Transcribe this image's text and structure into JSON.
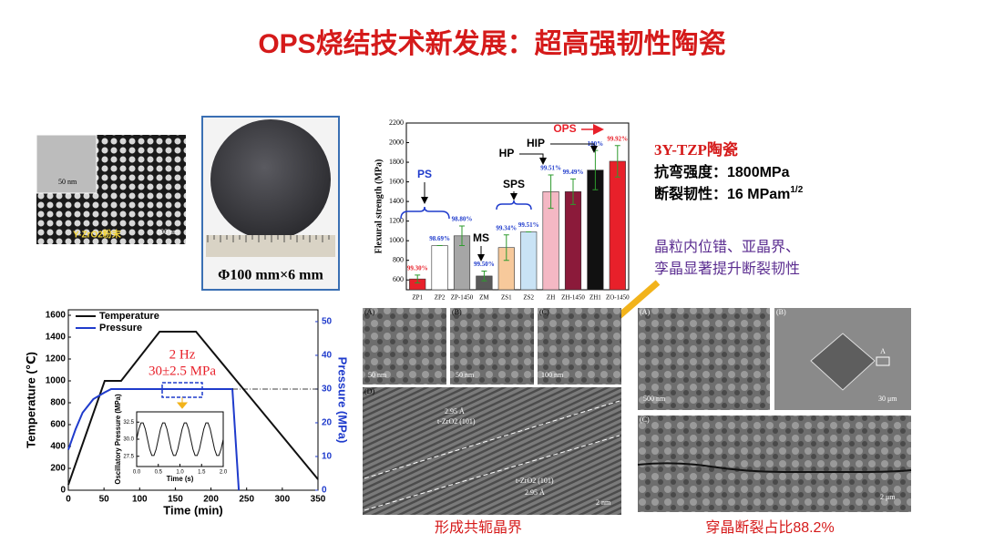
{
  "slide": {
    "title": "OPS烧结技术新发展：超高强韧性陶瓷",
    "powder_label": "Y-ZrO2粉末",
    "powder_scale_inset": "50 nm",
    "powder_scale": "100 nm",
    "disk_caption": "Φ100 mm×6 mm",
    "material": "3Y-TZP陶瓷",
    "strength": "抗弯强度：1800MPa",
    "toughness": "断裂韧性：16 MPam",
    "toughness_exp": "1/2",
    "mechanism_line1": "晶粒内位错、亚晶界、",
    "mechanism_line2": "孪晶显著提升断裂韧性",
    "tem_panels": [
      "(A)",
      "(B)",
      "(C)",
      "(D)"
    ],
    "tem_scales": [
      "50 nm",
      "50 nm",
      "100 nm",
      "2 nm"
    ],
    "tem_spacing": "2.95 Å",
    "tem_plane": "t-ZrO2 (101)",
    "tem_caption": "形成共轭晶界",
    "sem_panels": [
      "(A)",
      "(B)",
      "(C)"
    ],
    "sem_scales": [
      "500 nm",
      "30 μm",
      "2 μm"
    ],
    "sem_mark": "A",
    "sem_caption": "穿晶断裂占比88.2%",
    "bar_groups": [
      "PS",
      "MS",
      "SPS",
      "HP",
      "HIP",
      "OPS"
    ],
    "line_annotation_1": "2 Hz",
    "line_annotation_2": "30±2.5 MPa"
  },
  "chart_data": [
    {
      "type": "bar",
      "y_label": "Flexural strength (MPa)",
      "categories": [
        "ZP1",
        "ZP2",
        "ZP-1450",
        "ZM",
        "ZS1",
        "ZS2",
        "ZH",
        "ZH-1450",
        "ZH1",
        "ZO-1450"
      ],
      "series": [
        {
          "values": [
            610,
            950,
            1050,
            640,
            930,
            1090,
            1500,
            1500,
            1720,
            1810
          ],
          "errors": [
            40,
            0,
            100,
            50,
            130,
            0,
            170,
            130,
            200,
            160
          ],
          "colors": [
            "#e8202a",
            "#ffffff",
            "#a6a6a6",
            "#595959",
            "#f7c99b",
            "#c9e3f5",
            "#f4b8c4",
            "#8b1a3a",
            "#111111",
            "#e8202a"
          ],
          "density_labels": [
            "99.30%",
            "98.69%",
            "98.80%",
            "99.50%",
            "99.34%",
            "99.51%",
            "99.51%",
            "99.49%",
            "100%",
            "99.92%"
          ],
          "density_label_colors": [
            "#e8202a",
            "#1f3bcc",
            "#1f3bcc",
            "#1f3bcc",
            "#1f3bcc",
            "#1f3bcc",
            "#1f3bcc",
            "#1f3bcc",
            "#1f3bcc",
            "#e8202a"
          ]
        }
      ],
      "ylim": [
        500,
        2200
      ],
      "yticks": [
        600,
        800,
        1000,
        1200,
        1400,
        1600,
        1800,
        2000,
        2200
      ]
    },
    {
      "type": "line",
      "x_label": "Time (min)",
      "y_label": "Temperature (℃)",
      "y2_label": "Pressure (MPa)",
      "series": [
        {
          "name": "Temperature",
          "color": "#111111",
          "x": [
            0,
            51,
            74,
            128,
            179,
            350
          ],
          "values": [
            50,
            1000,
            1000,
            1450,
            1450,
            100
          ]
        },
        {
          "name": "Pressure",
          "color": "#1f3bcc",
          "axis": "y2",
          "x": [
            0,
            10,
            20,
            35,
            51,
            60,
            230,
            239
          ],
          "values": [
            12,
            18,
            23,
            27,
            29,
            30,
            30,
            0
          ]
        }
      ],
      "xlim": [
        0,
        350
      ],
      "xticks": [
        0,
        50,
        100,
        150,
        200,
        250,
        300,
        350
      ],
      "ylim": [
        0,
        1650
      ],
      "yticks": [
        0,
        200,
        400,
        600,
        800,
        1000,
        1200,
        1400,
        1600
      ],
      "y2lim": [
        0,
        53.5
      ],
      "y2ticks": [
        0,
        10,
        20,
        30,
        40,
        50
      ]
    },
    {
      "type": "line",
      "x_label": "Time (s)",
      "y_label": "Oscillatory Pressure (MPa)",
      "series": [
        {
          "color": "#111111",
          "x": [
            0,
            0.05,
            0.1,
            0.15,
            0.2,
            0.25,
            0.3,
            0.35,
            0.4,
            0.45,
            0.5,
            0.55,
            0.6,
            0.65,
            0.7,
            0.75,
            0.8,
            0.85,
            0.9,
            0.95,
            1,
            1.05,
            1.1,
            1.15,
            1.2,
            1.25,
            1.3,
            1.35,
            1.4,
            1.45,
            1.5,
            1.55,
            1.6,
            1.65,
            1.7,
            1.75,
            1.8,
            1.85,
            1.9,
            1.95,
            2
          ],
          "values": [
            30,
            31.47,
            32.38,
            32.38,
            31.47,
            30,
            28.53,
            27.62,
            27.62,
            28.53,
            30,
            31.47,
            32.38,
            32.38,
            31.47,
            30,
            28.53,
            27.62,
            27.62,
            28.53,
            30,
            31.47,
            32.38,
            32.38,
            31.47,
            30,
            28.53,
            27.62,
            27.62,
            28.53,
            30,
            31.47,
            32.38,
            32.38,
            31.47,
            30,
            28.53,
            27.62,
            27.62,
            28.53,
            30
          ]
        }
      ],
      "xlim": [
        0,
        2
      ],
      "xticks": [
        {
          "value": 0,
          "label": "0.0"
        },
        {
          "value": 0.5,
          "label": "0.5"
        },
        {
          "value": 1,
          "label": "1.0"
        },
        {
          "value": 1.5,
          "label": "1.5"
        },
        {
          "value": 2,
          "label": "2.0"
        }
      ],
      "ylim": [
        26,
        34
      ],
      "yticks": [
        27.5,
        {
          "value": 30,
          "label": "30.0"
        },
        32.5
      ]
    }
  ]
}
